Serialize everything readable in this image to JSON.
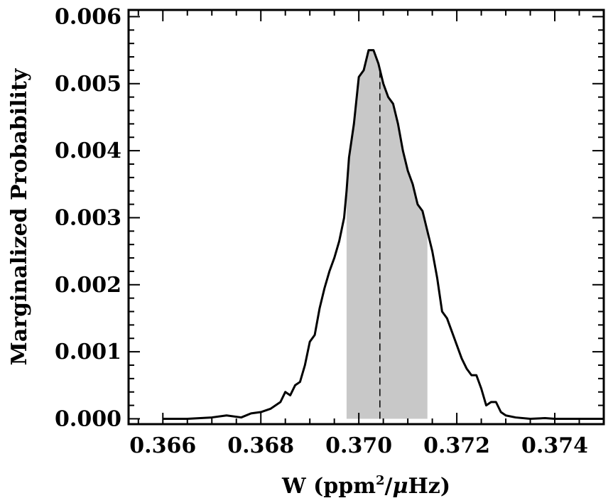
{
  "chart_data": {
    "type": "area",
    "xlabel_parts": {
      "main": "W (ppm",
      "sup": "2",
      "mid": "/",
      "mu": "μ",
      "tail": "Hz)"
    },
    "ylabel": "Marginalized Probability",
    "xlim": [
      0.3653,
      0.375
    ],
    "ylim": [
      -8e-05,
      0.0061
    ],
    "xticks": [
      0.366,
      0.368,
      0.37,
      0.372,
      0.374
    ],
    "xtick_labels": [
      "0.366",
      "0.368",
      "0.370",
      "0.372",
      "0.374"
    ],
    "yticks": [
      0.0,
      0.001,
      0.002,
      0.003,
      0.004,
      0.005,
      0.006
    ],
    "ytick_labels": [
      "0.000",
      "0.001",
      "0.002",
      "0.003",
      "0.004",
      "0.005",
      "0.006"
    ],
    "median": 0.37043,
    "credible_interval": [
      0.36975,
      0.3714
    ],
    "shade_color": "#c8c8c8",
    "line_color": "#000000",
    "series": [
      {
        "x": [
          0.366,
          0.3665,
          0.367,
          0.3673,
          0.3676,
          0.3678,
          0.368,
          0.3682,
          0.3684,
          0.3685,
          0.3686,
          0.3687,
          0.3688,
          0.3689,
          0.369,
          0.3691,
          0.3692,
          0.3693,
          0.3694,
          0.3695,
          0.3696,
          0.3697,
          0.36975,
          0.3698,
          0.3699,
          0.37,
          0.3701,
          0.3702,
          0.3703,
          0.3704,
          0.3705,
          0.3706,
          0.3707,
          0.3708,
          0.3709,
          0.371,
          0.3711,
          0.3712,
          0.3713,
          0.3714,
          0.3715,
          0.3716,
          0.3717,
          0.3718,
          0.3719,
          0.372,
          0.3721,
          0.3722,
          0.3723,
          0.3724,
          0.3725,
          0.3726,
          0.3727,
          0.3728,
          0.3729,
          0.373,
          0.3732,
          0.3735,
          0.3738,
          0.374,
          0.3745,
          0.375
        ],
        "y": [
          0.0,
          0.0,
          2e-05,
          5e-05,
          2e-05,
          8e-05,
          0.0001,
          0.00015,
          0.00025,
          0.0004,
          0.00035,
          0.0005,
          0.00055,
          0.0008,
          0.00115,
          0.00125,
          0.00165,
          0.00195,
          0.0022,
          0.0024,
          0.00265,
          0.003,
          0.0034,
          0.0039,
          0.0044,
          0.0051,
          0.0052,
          0.0055,
          0.0055,
          0.0053,
          0.005,
          0.0048,
          0.0047,
          0.0044,
          0.004,
          0.0037,
          0.0035,
          0.0032,
          0.0031,
          0.0028,
          0.0025,
          0.0021,
          0.0016,
          0.0015,
          0.0013,
          0.0011,
          0.0009,
          0.00075,
          0.00065,
          0.00065,
          0.00045,
          0.0002,
          0.00025,
          0.00025,
          0.0001,
          5e-05,
          2e-05,
          0.0,
          1e-05,
          0.0,
          0.0,
          0.0
        ]
      }
    ]
  }
}
